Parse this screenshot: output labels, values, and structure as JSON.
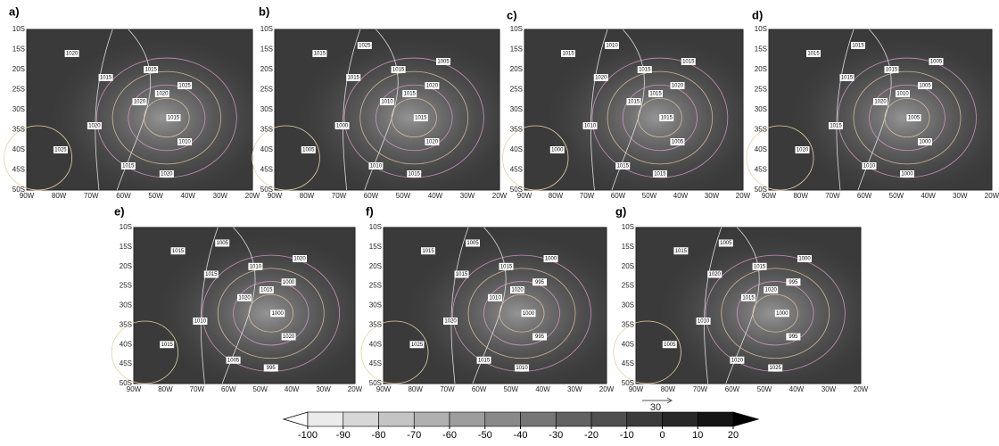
{
  "panels": [
    {
      "label": "a)",
      "contour_labels": [
        "1020",
        "1015",
        "1020",
        "1015",
        "1020",
        "1015",
        "1010",
        "1025",
        "1020",
        "1015",
        "1020",
        "1025"
      ]
    },
    {
      "label": "b)",
      "contour_labels": [
        "1015",
        "1015",
        "1010",
        "1015",
        "1015",
        "1015",
        "1020",
        "1005",
        "1000",
        "1010",
        "1015",
        "1020",
        "1005",
        "1025"
      ]
    },
    {
      "label": "c)",
      "contour_labels": [
        "1015",
        "1020",
        "1015",
        "1015",
        "1015",
        "1015",
        "1005",
        "1000",
        "1010",
        "1015",
        "1015",
        "1020",
        "1015",
        "1010"
      ]
    },
    {
      "label": "d)",
      "contour_labels": [
        "1015",
        "1015",
        "1020",
        "1015",
        "1010",
        "1005",
        "1000",
        "1020",
        "1015",
        "1010",
        "1000",
        "1005",
        "1005",
        "1015"
      ]
    },
    {
      "label": "e)",
      "contour_labels": [
        "1015",
        "1015",
        "1020",
        "1010",
        "1015",
        "1000",
        "1020",
        "1015",
        "1010",
        "1005",
        "995",
        "1000",
        "1020",
        "1005"
      ]
    },
    {
      "label": "f)",
      "contour_labels": [
        "1015",
        "1015",
        "1010",
        "1015",
        "1020",
        "1000",
        "995",
        "1025",
        "1020",
        "1015",
        "1010",
        "995",
        "1000",
        "1005"
      ]
    },
    {
      "label": "g)",
      "contour_labels": [
        "1015",
        "1020",
        "1015",
        "1015",
        "1020",
        "1000",
        "995",
        "1005",
        "1010",
        "1020",
        "1025",
        "995",
        "1000",
        "1005"
      ]
    }
  ],
  "lat_ticks": [
    "10S",
    "15S",
    "20S",
    "25S",
    "30S",
    "35S",
    "40S",
    "45S",
    "50S"
  ],
  "lon_ticks": [
    "90W",
    "80W",
    "70W",
    "60W",
    "50W",
    "40W",
    "30W",
    "20W"
  ],
  "colorbar": {
    "ticks": [
      -100,
      -90,
      -80,
      -70,
      -60,
      -50,
      -40,
      -30,
      -20,
      -10,
      0,
      10,
      20
    ]
  },
  "reference_vector": "30"
}
